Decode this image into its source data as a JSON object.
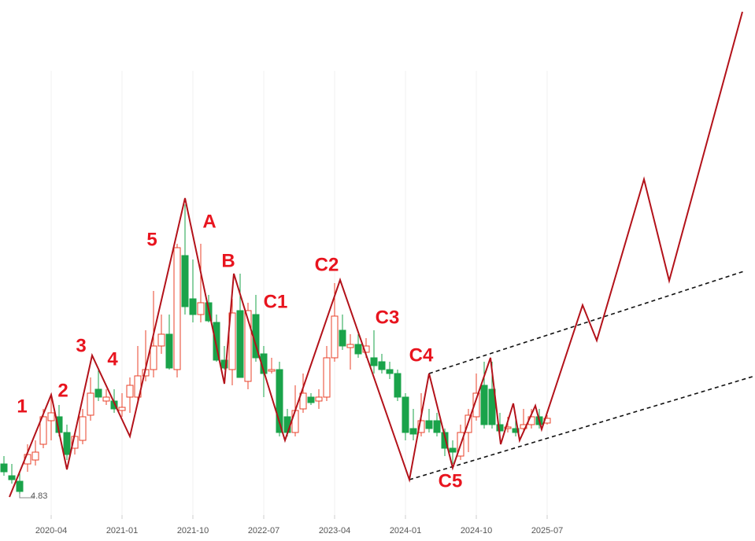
{
  "chart_data": {
    "type": "candlestick",
    "xlim": [
      -0.5,
      95.4
    ],
    "ylim": [
      4.23,
      11.11
    ],
    "xticks": [
      {
        "value": 6,
        "label": "2020-04"
      },
      {
        "value": 15,
        "label": "2021-01"
      },
      {
        "value": 24,
        "label": "2021-10"
      },
      {
        "value": 33,
        "label": "2022-07"
      },
      {
        "value": 42,
        "label": "2023-04"
      },
      {
        "value": 51,
        "label": "2024-01"
      },
      {
        "value": 60,
        "label": "2024-10"
      },
      {
        "value": 69,
        "label": "2025-07"
      }
    ],
    "grid": true,
    "up_color": "#e8402a",
    "down_color": "#1aa34a",
    "x": [
      0,
      1,
      2,
      3,
      4,
      5,
      6,
      7,
      8,
      9,
      10,
      11,
      12,
      13,
      14,
      15,
      16,
      17,
      18,
      19,
      20,
      21,
      22,
      23,
      24,
      25,
      26,
      27,
      28,
      29,
      30,
      31,
      32,
      33,
      34,
      35,
      36,
      37,
      38,
      39,
      40,
      41,
      42,
      43,
      44,
      45,
      46,
      47,
      48,
      49,
      50,
      51,
      52,
      53,
      54,
      55,
      56,
      57,
      58,
      59,
      60,
      61,
      62,
      63,
      64,
      65,
      66,
      67,
      68,
      69
    ],
    "open": [
      5.21,
      5.06,
      4.99,
      5.21,
      5.26,
      5.46,
      5.76,
      5.81,
      5.61,
      5.41,
      5.51,
      5.83,
      6.16,
      6.01,
      6.01,
      5.89,
      6.06,
      6.06,
      6.33,
      6.41,
      6.71,
      6.86,
      6.41,
      7.86,
      7.31,
      7.11,
      7.26,
      7.01,
      6.53,
      6.41,
      7.16,
      6.26,
      7.11,
      6.61,
      6.39,
      6.41,
      5.81,
      5.61,
      5.91,
      6.06,
      6.01,
      6.06,
      6.56,
      6.91,
      6.69,
      6.73,
      6.63,
      6.56,
      6.51,
      6.41,
      6.36,
      6.06,
      5.66,
      5.61,
      5.76,
      5.76,
      5.61,
      5.41,
      5.31,
      5.61,
      5.81,
      6.21,
      6.16,
      5.71,
      5.66,
      5.66,
      5.66,
      5.71,
      5.81,
      5.73
    ],
    "high": [
      5.31,
      5.21,
      5.11,
      5.46,
      5.51,
      5.91,
      6.11,
      5.96,
      5.71,
      5.61,
      5.91,
      6.31,
      6.41,
      6.16,
      6.16,
      6.11,
      6.31,
      6.71,
      6.91,
      7.41,
      7.11,
      7.11,
      8.01,
      8.51,
      7.81,
      8.01,
      7.36,
      7.11,
      6.71,
      7.31,
      7.63,
      7.26,
      7.36,
      6.71,
      6.56,
      6.51,
      5.91,
      6.21,
      6.36,
      6.11,
      6.16,
      6.71,
      7.51,
      7.11,
      6.86,
      6.86,
      6.81,
      6.91,
      6.61,
      6.51,
      6.41,
      6.11,
      5.91,
      6.11,
      5.91,
      5.86,
      5.66,
      5.51,
      5.71,
      5.91,
      6.36,
      6.51,
      6.51,
      5.86,
      5.81,
      5.81,
      5.91,
      5.91,
      5.91,
      5.83
    ],
    "low": [
      5.06,
      4.96,
      4.83,
      5.11,
      5.19,
      5.41,
      5.51,
      5.56,
      5.26,
      5.33,
      5.46,
      5.76,
      6.01,
      5.96,
      5.86,
      5.81,
      5.86,
      6.01,
      6.26,
      6.31,
      6.61,
      6.41,
      6.31,
      7.11,
      7.01,
      7.01,
      7.01,
      6.51,
      6.41,
      6.21,
      6.31,
      6.16,
      6.51,
      6.06,
      6.36,
      5.56,
      5.56,
      5.56,
      5.86,
      5.96,
      5.91,
      6.01,
      6.51,
      6.66,
      6.41,
      6.56,
      6.56,
      6.36,
      6.36,
      6.29,
      6.01,
      5.51,
      5.51,
      5.56,
      5.61,
      5.56,
      5.31,
      5.21,
      5.26,
      5.36,
      5.76,
      5.66,
      5.66,
      5.51,
      5.61,
      5.56,
      5.61,
      5.66,
      5.66,
      5.71
    ],
    "close": [
      5.11,
      5.01,
      4.86,
      5.33,
      5.36,
      5.81,
      5.86,
      5.61,
      5.33,
      5.56,
      5.81,
      6.11,
      6.06,
      6.06,
      5.91,
      5.93,
      6.21,
      6.33,
      6.41,
      6.71,
      6.86,
      6.43,
      7.96,
      7.21,
      7.11,
      7.26,
      7.03,
      6.53,
      6.43,
      7.13,
      6.31,
      7.16,
      6.56,
      6.36,
      6.41,
      5.61,
      5.61,
      5.89,
      6.11,
      5.99,
      6.06,
      6.56,
      7.09,
      6.71,
      6.73,
      6.61,
      6.71,
      6.46,
      6.41,
      6.36,
      6.06,
      5.61,
      5.59,
      5.76,
      5.66,
      5.61,
      5.41,
      5.36,
      5.61,
      5.83,
      6.11,
      5.71,
      5.71,
      5.63,
      5.68,
      5.61,
      5.71,
      5.81,
      5.71,
      5.79
    ],
    "low_label": 4.83,
    "wave": {
      "color": "#b3121a",
      "x": [
        0.7,
        6,
        8,
        11.2,
        16,
        23,
        28,
        29.2,
        35.7,
        42.7,
        51.5,
        54,
        57,
        61.8,
        63.1,
        64.7,
        65.5,
        67.5,
        68.3,
        73.5,
        75.3,
        81.3,
        84.5,
        93.8
      ],
      "y": [
        4.79,
        6.09,
        5.14,
        6.59,
        5.56,
        8.59,
        6.23,
        7.63,
        5.51,
        7.55,
        5.01,
        6.36,
        5.16,
        6.56,
        5.46,
        5.98,
        5.51,
        5.95,
        5.65,
        7.23,
        6.78,
        8.83,
        7.54,
        10.96
      ]
    },
    "channel": [
      {
        "x": [
          54,
          94
        ],
        "y": [
          6.36,
          7.66
        ]
      },
      {
        "x": [
          51.5,
          95.4
        ],
        "y": [
          5.01,
          6.33
        ]
      }
    ],
    "annotations": [
      "1",
      "2",
      "3",
      "4",
      "5",
      "A",
      "B",
      "C1",
      "C2",
      "C3",
      "C4",
      "C5"
    ]
  }
}
